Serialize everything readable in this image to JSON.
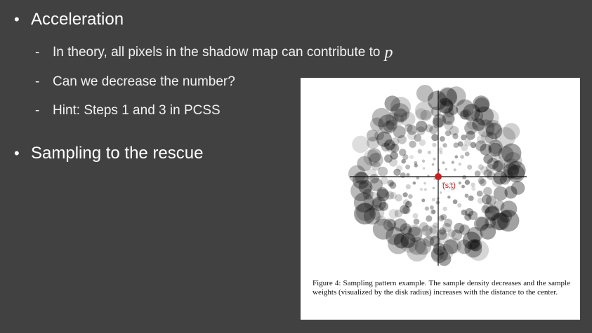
{
  "bullets": [
    {
      "text": "Acceleration"
    },
    {
      "text": "Sampling to the rescue"
    }
  ],
  "sub_bullets": [
    {
      "text": "In theory, all pixels in the shadow map can contribute to",
      "math": "p"
    },
    {
      "text": "Can we decrease the number?"
    },
    {
      "text": "Hint: Steps 1 and 3 in PCSS"
    }
  ],
  "figure": {
    "center_label": "(s,t)",
    "caption": "Figure 4: Sampling pattern example. The sample density decreases and the sample weights (visualized by the disk radius) increases with the distance to the center.",
    "center_color": "#cc1f1f",
    "disk_color": "#000000"
  }
}
